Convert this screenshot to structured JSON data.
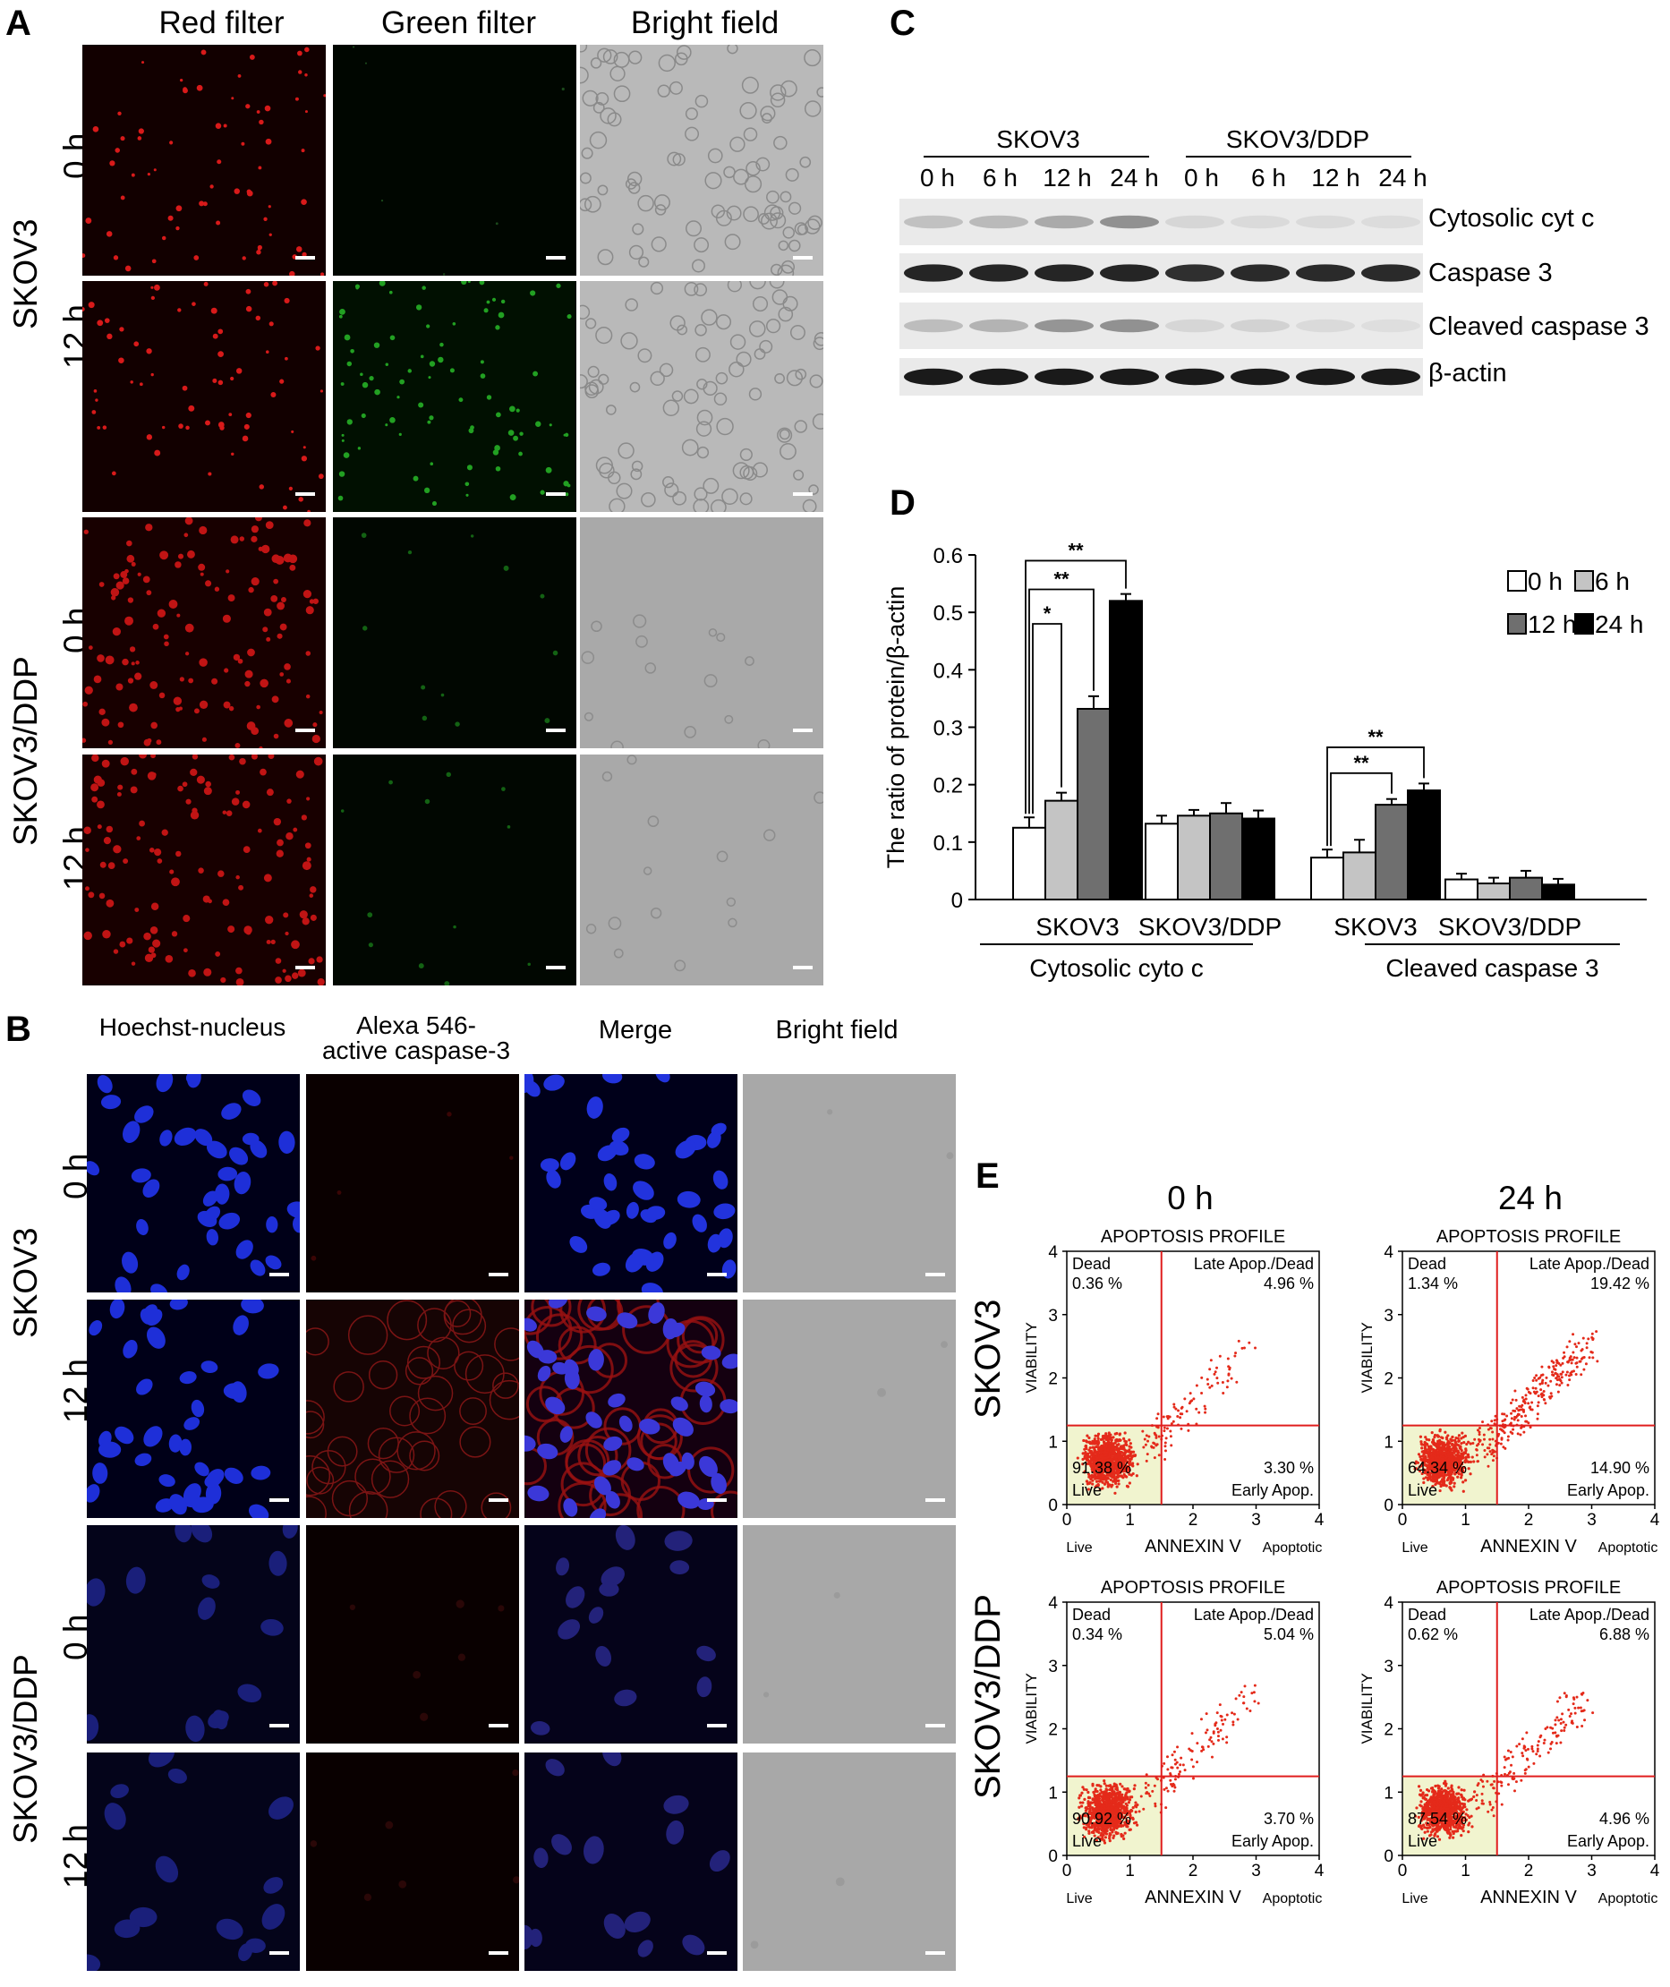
{
  "panels": {
    "A": {
      "label": "A",
      "columns": [
        "Red filter",
        "Green filter",
        "Bright field"
      ],
      "cell_lines": [
        "SKOV3",
        "SKOV3/DDP"
      ],
      "rows": [
        "0 h",
        "12 h",
        "0 h",
        "12 h"
      ]
    },
    "B": {
      "label": "B",
      "columns": [
        "Hoechst-nucleus",
        "Alexa 546-\nactive caspase-3",
        "Merge",
        "Bright field"
      ],
      "cell_lines": [
        "SKOV3",
        "SKOV3/DDP"
      ],
      "rows": [
        "0 h",
        "12 h",
        "0 h",
        "12 h"
      ]
    },
    "C": {
      "label": "C",
      "groups": [
        "SKOV3",
        "SKOV3/DDP"
      ],
      "lanes": [
        "0 h",
        "6 h",
        "12 h",
        "24 h",
        "0 h",
        "6 h",
        "12 h",
        "24 h"
      ],
      "bands": [
        "Cytosolic cyt c",
        "Caspase 3",
        "Cleaved caspase 3",
        "β-actin"
      ]
    },
    "D": {
      "label": "D"
    },
    "E": {
      "label": "E",
      "times": [
        "0 h",
        "24 h"
      ],
      "cell_lines": [
        "SKOV3",
        "SKOV3/DDP"
      ],
      "plot_title": "APOPTOSIS PROFILE",
      "x_label": "ANNEXIN V",
      "y_label": "VIABILITY",
      "x_left": "Live",
      "x_right": "Apoptotic",
      "quadrant_names": {
        "dead": "Dead",
        "late": "Late Apop./Dead",
        "early": "Early Apop.",
        "live": "Live"
      },
      "ticks": [
        "0",
        "1",
        "2",
        "3",
        "4"
      ],
      "plots": [
        {
          "dead": "0.36 %",
          "late": "4.96 %",
          "early": "3.30 %",
          "live": "91.38 %"
        },
        {
          "dead": "1.34 %",
          "late": "19.42 %",
          "early": "14.90 %",
          "live": "64.34 %"
        },
        {
          "dead": "0.34 %",
          "late": "5.04 %",
          "early": "3.70 %",
          "live": "90.92 %"
        },
        {
          "dead": "0.62 %",
          "late": "6.88 %",
          "early": "4.96 %",
          "live": "87.54 %"
        }
      ]
    }
  },
  "chart_data": {
    "type": "bar",
    "ylabel": "The ratio of protein/β-actin",
    "ylim": [
      0,
      0.6
    ],
    "yticks": [
      "0",
      "0.1",
      "0.2",
      "0.3",
      "0.4",
      "0.5",
      "0.6"
    ],
    "groups": [
      {
        "name": "SKOV3",
        "parent": "Cytosolic cyto c",
        "values": [
          0.125,
          0.172,
          0.332,
          0.52
        ],
        "errors": [
          0.018,
          0.014,
          0.022,
          0.012
        ]
      },
      {
        "name": "SKOV3/DDP",
        "parent": "Cytosolic cyto c",
        "values": [
          0.132,
          0.146,
          0.15,
          0.141
        ],
        "errors": [
          0.014,
          0.01,
          0.018,
          0.014
        ]
      },
      {
        "name": "SKOV3",
        "parent": "Cleaved caspase 3",
        "values": [
          0.073,
          0.082,
          0.165,
          0.19
        ],
        "errors": [
          0.014,
          0.022,
          0.01,
          0.012
        ]
      },
      {
        "name": "SKOV3/DDP",
        "parent": "Cleaved caspase 3",
        "values": [
          0.035,
          0.028,
          0.038,
          0.026
        ],
        "errors": [
          0.01,
          0.01,
          0.012,
          0.01
        ]
      }
    ],
    "parents": [
      "Cytosolic cyto c",
      "Cleaved caspase 3"
    ],
    "legend": [
      {
        "name": "0 h",
        "color": "#ffffff"
      },
      {
        "name": "6 h",
        "color": "#c4c4c4"
      },
      {
        "name": "12 h",
        "color": "#6f6f6f"
      },
      {
        "name": "24 h",
        "color": "#000000"
      }
    ],
    "legend_position": "top-right",
    "significance": [
      "*",
      "**",
      "**",
      "**",
      "**"
    ]
  }
}
